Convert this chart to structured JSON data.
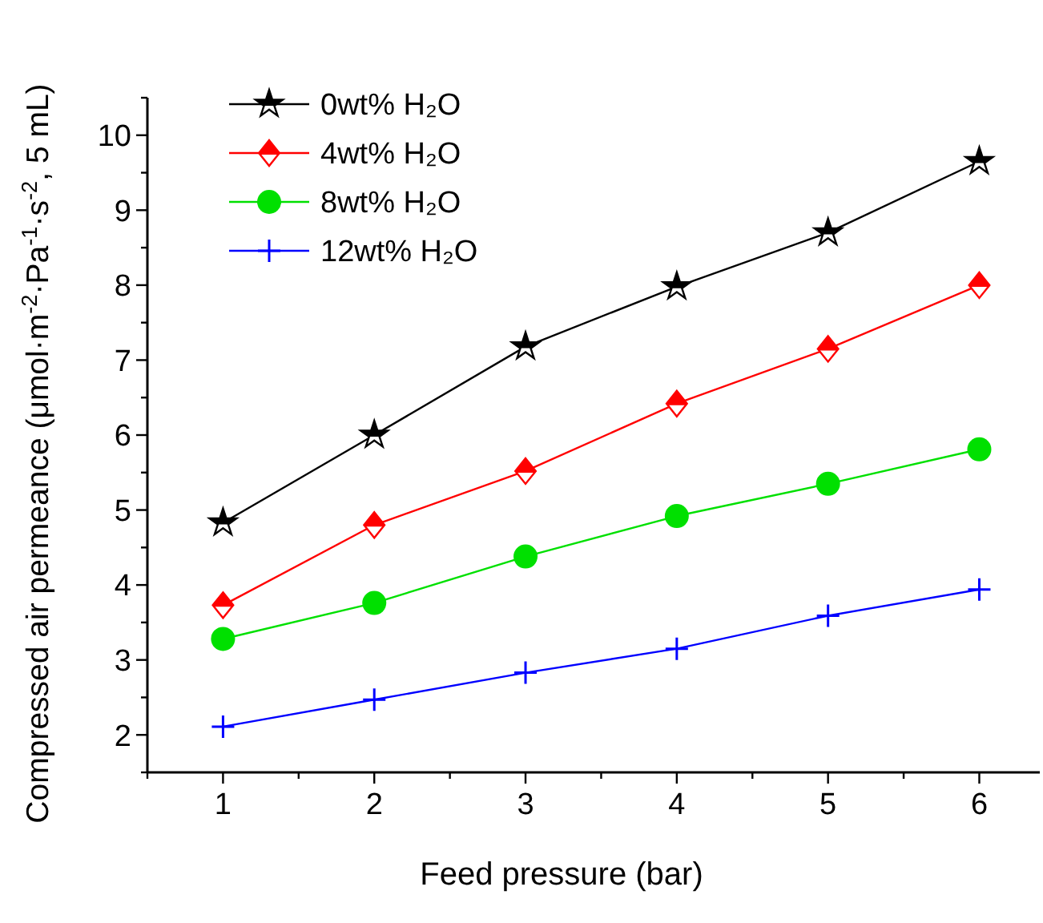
{
  "chart_data": {
    "type": "line",
    "xlabel": "Feed pressure (bar)",
    "ylabel": "Compressed air permeance (μmol·m$^{-2}$·Pa$^{-1}$·s$^{-2}$, 5 mL)",
    "x": [
      1,
      2,
      3,
      4,
      5,
      6
    ],
    "xlim": [
      0.5,
      6.4
    ],
    "xticks": [
      {
        "value": 0.5,
        "label": null
      },
      1,
      {
        "value": 1.5,
        "label": null
      },
      2,
      {
        "value": 2.5,
        "label": null
      },
      3,
      {
        "value": 3.5,
        "label": null
      },
      4,
      {
        "value": 4.5,
        "label": null
      },
      5,
      {
        "value": 5.5,
        "label": null
      },
      6
    ],
    "ylim": [
      1.5,
      10.5
    ],
    "yticks": [
      {
        "value": 1.5,
        "label": null
      },
      2,
      {
        "value": 2.5,
        "label": null
      },
      3,
      {
        "value": 3.5,
        "label": null
      },
      4,
      {
        "value": 4.5,
        "label": null
      },
      5,
      {
        "value": 5.5,
        "label": null
      },
      6,
      {
        "value": 6.5,
        "label": null
      },
      7,
      {
        "value": 7.5,
        "label": null
      },
      8,
      {
        "value": 8.5,
        "label": null
      },
      9,
      {
        "value": 9.5,
        "label": null
      },
      10,
      {
        "value": 10.5,
        "label": null
      }
    ],
    "grid": false,
    "legend": "top left",
    "line_style": "solid",
    "series": [
      {
        "name": "0wt% H₂O",
        "color": "#000000",
        "marker": "star",
        "values": [
          4.83,
          6.0,
          7.18,
          7.98,
          8.7,
          9.65
        ]
      },
      {
        "name": "4wt% H₂O",
        "color": "#ff0000",
        "marker": "diamond",
        "values": [
          3.73,
          4.8,
          5.52,
          6.42,
          7.15,
          8.0
        ]
      },
      {
        "name": "8wt% H₂O",
        "color": "#00e000",
        "marker": "circle",
        "values": [
          3.28,
          3.76,
          4.38,
          4.92,
          5.35,
          5.81
        ]
      },
      {
        "name": "12wt% H₂O",
        "color": "#0000ff",
        "marker": "cross",
        "values": [
          2.11,
          2.47,
          2.83,
          3.15,
          3.59,
          3.94
        ]
      }
    ]
  }
}
